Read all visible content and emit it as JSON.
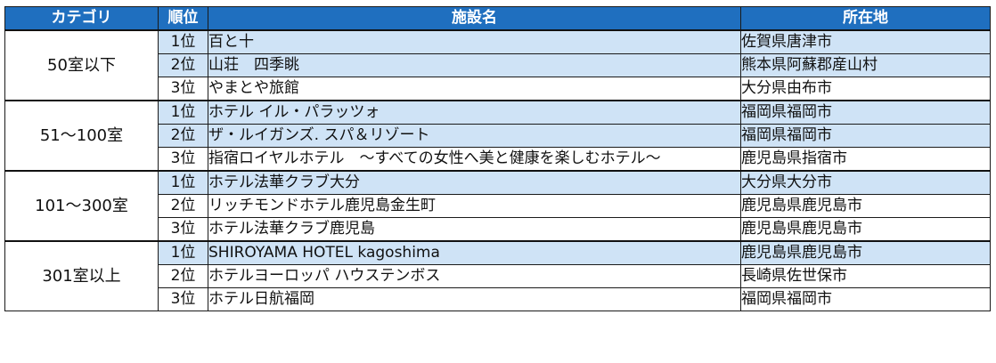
{
  "headers": {
    "category": "カテゴリ",
    "rank": "順位",
    "facility": "施設名",
    "location": "所在地"
  },
  "groups": [
    {
      "category": "50室以下",
      "rows": [
        {
          "rank": "1位",
          "name": "百と十",
          "location": "佐賀県唐津市"
        },
        {
          "rank": "2位",
          "name": "山荘　四季眺",
          "location": "熊本県阿蘇郡産山村"
        },
        {
          "rank": "3位",
          "name": "やまとや旅館",
          "location": "大分県由布市"
        }
      ]
    },
    {
      "category": "51～100室",
      "rows": [
        {
          "rank": "1位",
          "name": "ホテル イル・パラッツォ",
          "location": "福岡県福岡市"
        },
        {
          "rank": "2位",
          "name": "ザ・ルイガンズ. スパ＆リゾート",
          "location": "福岡県福岡市"
        },
        {
          "rank": "3位",
          "name": "指宿ロイヤルホテル　～すべての女性へ美と健康を楽しむホテル～",
          "location": "鹿児島県指宿市"
        }
      ]
    },
    {
      "category": "101～300室",
      "rows": [
        {
          "rank": "1位",
          "name": "ホテル法華クラブ大分",
          "location": "大分県大分市"
        },
        {
          "rank": "2位",
          "name": "リッチモンドホテル鹿児島金生町",
          "location": "鹿児島県鹿児島市"
        },
        {
          "rank": "3位",
          "name": "ホテル法華クラブ鹿児島",
          "location": "鹿児島県鹿児島市"
        }
      ]
    },
    {
      "category": "301室以上",
      "rows": [
        {
          "rank": "1位",
          "name": "SHIROYAMA HOTEL kagoshima",
          "location": "鹿児島県鹿児島市"
        },
        {
          "rank": "2位",
          "name": "ホテルヨーロッパ ハウステンボス",
          "location": "長崎県佐世保市"
        },
        {
          "rank": "3位",
          "name": "ホテル日航福岡",
          "location": "福岡県福岡市"
        }
      ]
    }
  ],
  "colors": {
    "header_bg": "#1f6fbf",
    "row_alt_bg": "#cfe3f6"
  }
}
